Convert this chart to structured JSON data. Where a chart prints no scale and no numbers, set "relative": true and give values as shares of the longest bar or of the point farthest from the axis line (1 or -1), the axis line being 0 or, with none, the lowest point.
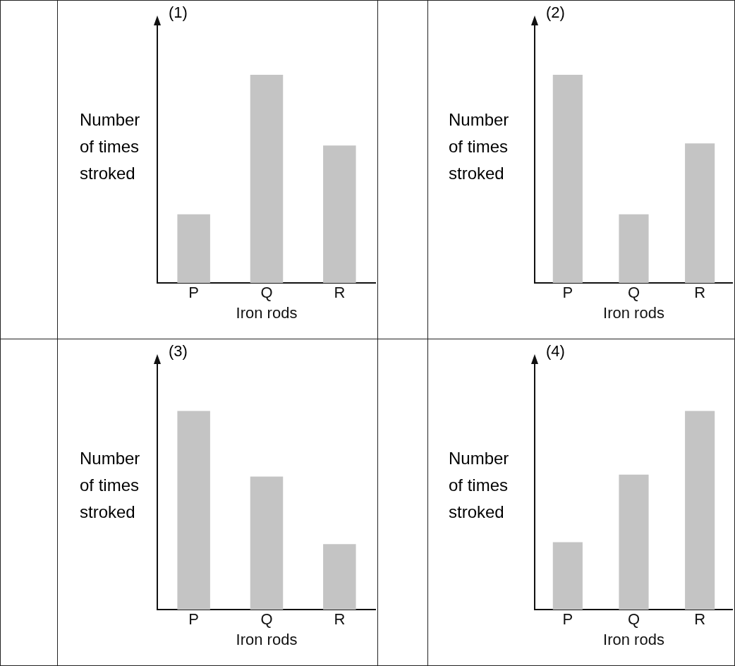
{
  "chart_data": [
    {
      "type": "bar",
      "title": "(1)",
      "xlabel": "Iron rods",
      "ylabel": "Number of times stroked",
      "categories": [
        "P",
        "Q",
        "R"
      ],
      "values": [
        0.33,
        1,
        0.66
      ],
      "color": "#c4c4c4",
      "relative": true
    },
    {
      "type": "bar",
      "title": "(2)",
      "xlabel": "Iron rods",
      "ylabel": "Number of times stroked",
      "categories": [
        "P",
        "Q",
        "R"
      ],
      "values": [
        1,
        0.33,
        0.67
      ],
      "color": "#c4c4c4",
      "relative": true
    },
    {
      "type": "bar",
      "title": "(3)",
      "xlabel": "Iron rods",
      "ylabel": "Number of times stroked",
      "categories": [
        "P",
        "Q",
        "R"
      ],
      "values": [
        1,
        0.67,
        0.33
      ],
      "color": "#c4c4c4",
      "relative": true
    },
    {
      "type": "bar",
      "title": "(4)",
      "xlabel": "Iron rods",
      "ylabel": "Number of times stroked",
      "categories": [
        "P",
        "Q",
        "R"
      ],
      "values": [
        0.34,
        0.68,
        1
      ],
      "color": "#c4c4c4",
      "relative": true
    }
  ]
}
